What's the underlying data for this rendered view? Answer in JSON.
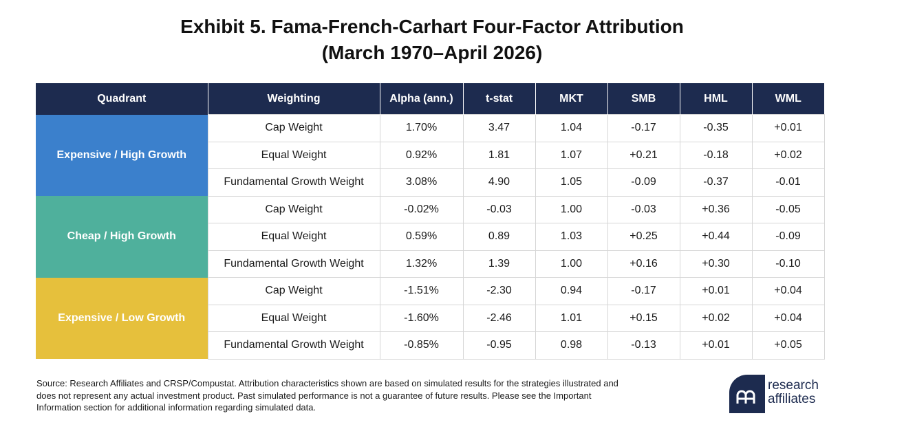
{
  "title_line1": "Exhibit 5. Fama-French-Carhart Four-Factor Attribution",
  "title_line2": "(March 1970–April 2026)",
  "columns": [
    "Quadrant",
    "Weighting",
    "Alpha (ann.)",
    "t-stat",
    "MKT",
    "SMB",
    "HML",
    "WML"
  ],
  "groups": [
    {
      "quadrant": "Expensive / High Growth",
      "color": "#3b80cc",
      "rows": [
        {
          "weighting": "Cap Weight",
          "alpha": "1.70%",
          "tstat": "3.47",
          "mkt": "1.04",
          "smb": "-0.17",
          "hml": "-0.35",
          "wml": "+0.01"
        },
        {
          "weighting": "Equal Weight",
          "alpha": "0.92%",
          "tstat": "1.81",
          "mkt": "1.07",
          "smb": "+0.21",
          "hml": "-0.18",
          "wml": "+0.02"
        },
        {
          "weighting": "Fundamental Growth Weight",
          "alpha": "3.08%",
          "tstat": "4.90",
          "mkt": "1.05",
          "smb": "-0.09",
          "hml": "-0.37",
          "wml": "-0.01"
        }
      ]
    },
    {
      "quadrant": "Cheap / High Growth",
      "color": "#4fb09c",
      "rows": [
        {
          "weighting": "Cap Weight",
          "alpha": "-0.02%",
          "tstat": "-0.03",
          "mkt": "1.00",
          "smb": "-0.03",
          "hml": "+0.36",
          "wml": "-0.05"
        },
        {
          "weighting": "Equal Weight",
          "alpha": "0.59%",
          "tstat": "0.89",
          "mkt": "1.03",
          "smb": "+0.25",
          "hml": "+0.44",
          "wml": "-0.09"
        },
        {
          "weighting": "Fundamental Growth Weight",
          "alpha": "1.32%",
          "tstat": "1.39",
          "mkt": "1.00",
          "smb": "+0.16",
          "hml": "+0.30",
          "wml": "-0.10"
        }
      ]
    },
    {
      "quadrant": "Expensive / Low Growth",
      "color": "#e6c03c",
      "rows": [
        {
          "weighting": "Cap Weight",
          "alpha": "-1.51%",
          "tstat": "-2.30",
          "mkt": "0.94",
          "smb": "-0.17",
          "hml": "+0.01",
          "wml": "+0.04"
        },
        {
          "weighting": "Equal Weight",
          "alpha": "-1.60%",
          "tstat": "-2.46",
          "mkt": "1.01",
          "smb": "+0.15",
          "hml": "+0.02",
          "wml": "+0.04"
        },
        {
          "weighting": "Fundamental Growth Weight",
          "alpha": "-0.85%",
          "tstat": "-0.95",
          "mkt": "0.98",
          "smb": "-0.13",
          "hml": "+0.01",
          "wml": "+0.05"
        }
      ]
    }
  ],
  "header_color": "#1d2b4f",
  "footer_text": "Source: Research Affiliates and CRSP/Compustat. Attribution characteristics shown are based on simulated results for the strategies illustrated and does not represent any actual investment product. Past simulated performance is not a guarantee of future results. Please see the Important Information section for additional information regarding simulated data.",
  "logo": {
    "icon": "research-affiliates-logo-icon",
    "line1": "research",
    "line2": "affiliates",
    "color": "#1d2b4f"
  }
}
